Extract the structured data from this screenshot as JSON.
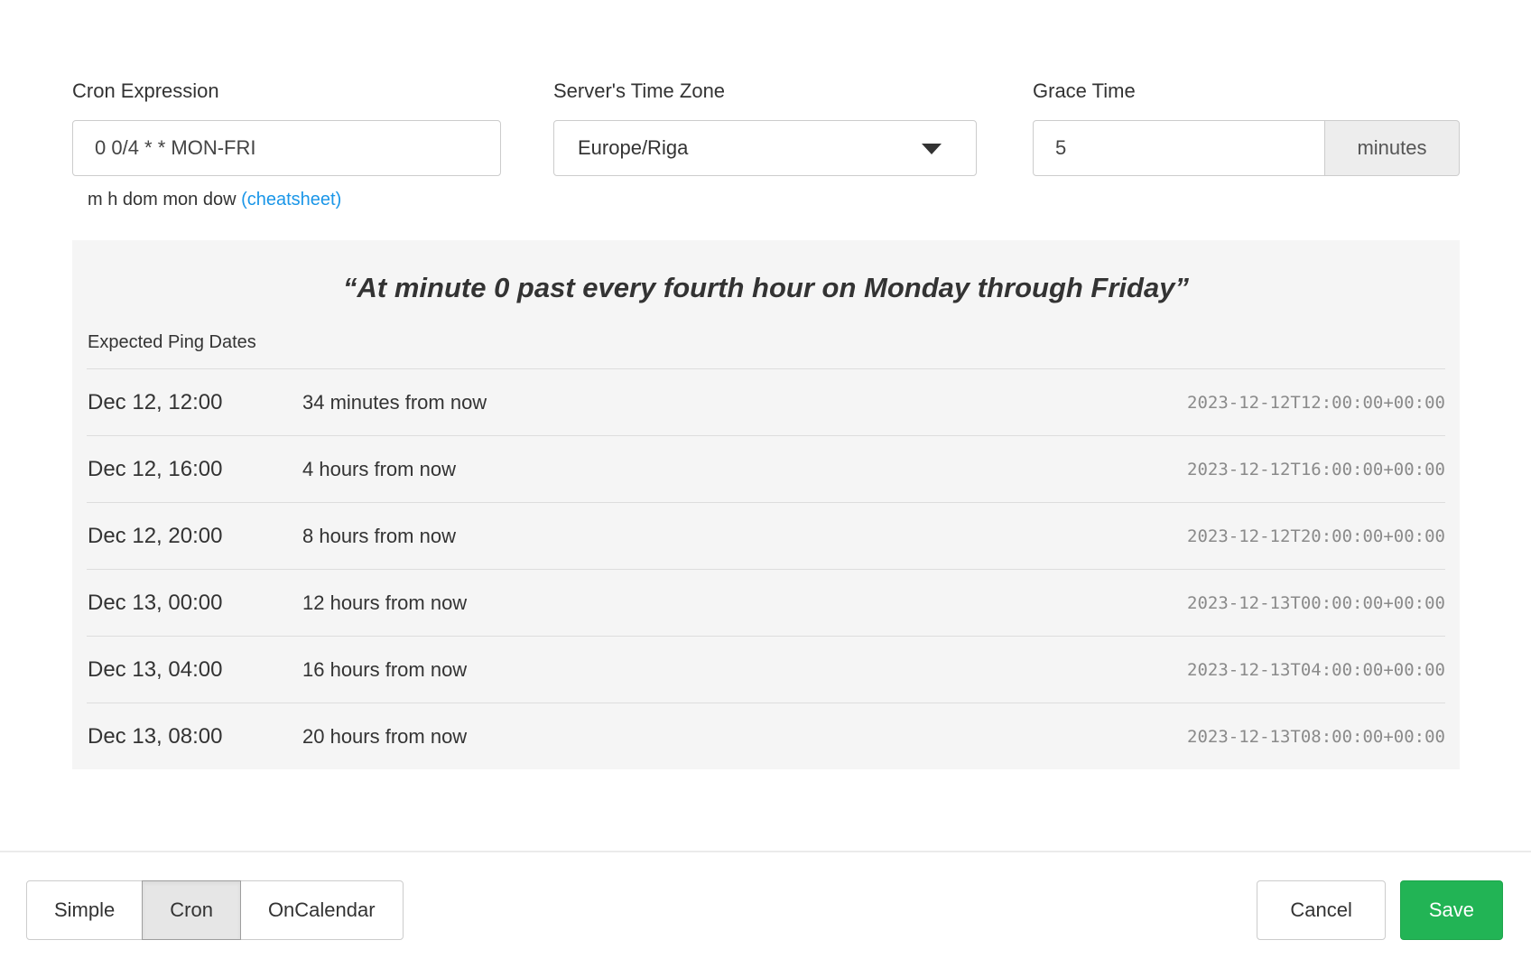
{
  "form": {
    "cron": {
      "label": "Cron Expression",
      "value": "0 0/4 * * MON-FRI",
      "helper_text": "m h dom mon dow ",
      "helper_link": "(cheatsheet)"
    },
    "timezone": {
      "label": "Server's Time Zone",
      "selected": "Europe/Riga",
      "caret_icon": "triangle-down"
    },
    "grace": {
      "label": "Grace Time",
      "value": "5",
      "unit": "minutes"
    }
  },
  "preview": {
    "description": "“At minute 0 past every fourth hour on Monday through Friday”",
    "subtitle": "Expected Ping Dates",
    "rows": [
      {
        "date": "Dec 12, 12:00",
        "relative": "34 minutes from now",
        "iso": "2023-12-12T12:00:00+00:00"
      },
      {
        "date": "Dec 12, 16:00",
        "relative": "4 hours from now",
        "iso": "2023-12-12T16:00:00+00:00"
      },
      {
        "date": "Dec 12, 20:00",
        "relative": "8 hours from now",
        "iso": "2023-12-12T20:00:00+00:00"
      },
      {
        "date": "Dec 13, 00:00",
        "relative": "12 hours from now",
        "iso": "2023-12-13T00:00:00+00:00"
      },
      {
        "date": "Dec 13, 04:00",
        "relative": "16 hours from now",
        "iso": "2023-12-13T04:00:00+00:00"
      },
      {
        "date": "Dec 13, 08:00",
        "relative": "20 hours from now",
        "iso": "2023-12-13T08:00:00+00:00"
      }
    ]
  },
  "footer": {
    "tabs": [
      {
        "label": "Simple",
        "active": false
      },
      {
        "label": "Cron",
        "active": true
      },
      {
        "label": "OnCalendar",
        "active": false
      }
    ],
    "cancel_label": "Cancel",
    "save_label": "Save"
  },
  "colors": {
    "accent_green": "#22b455",
    "link_blue": "#1a96e8",
    "panel_bg": "#f5f5f5",
    "active_tab_bg": "#e6e6e6"
  }
}
